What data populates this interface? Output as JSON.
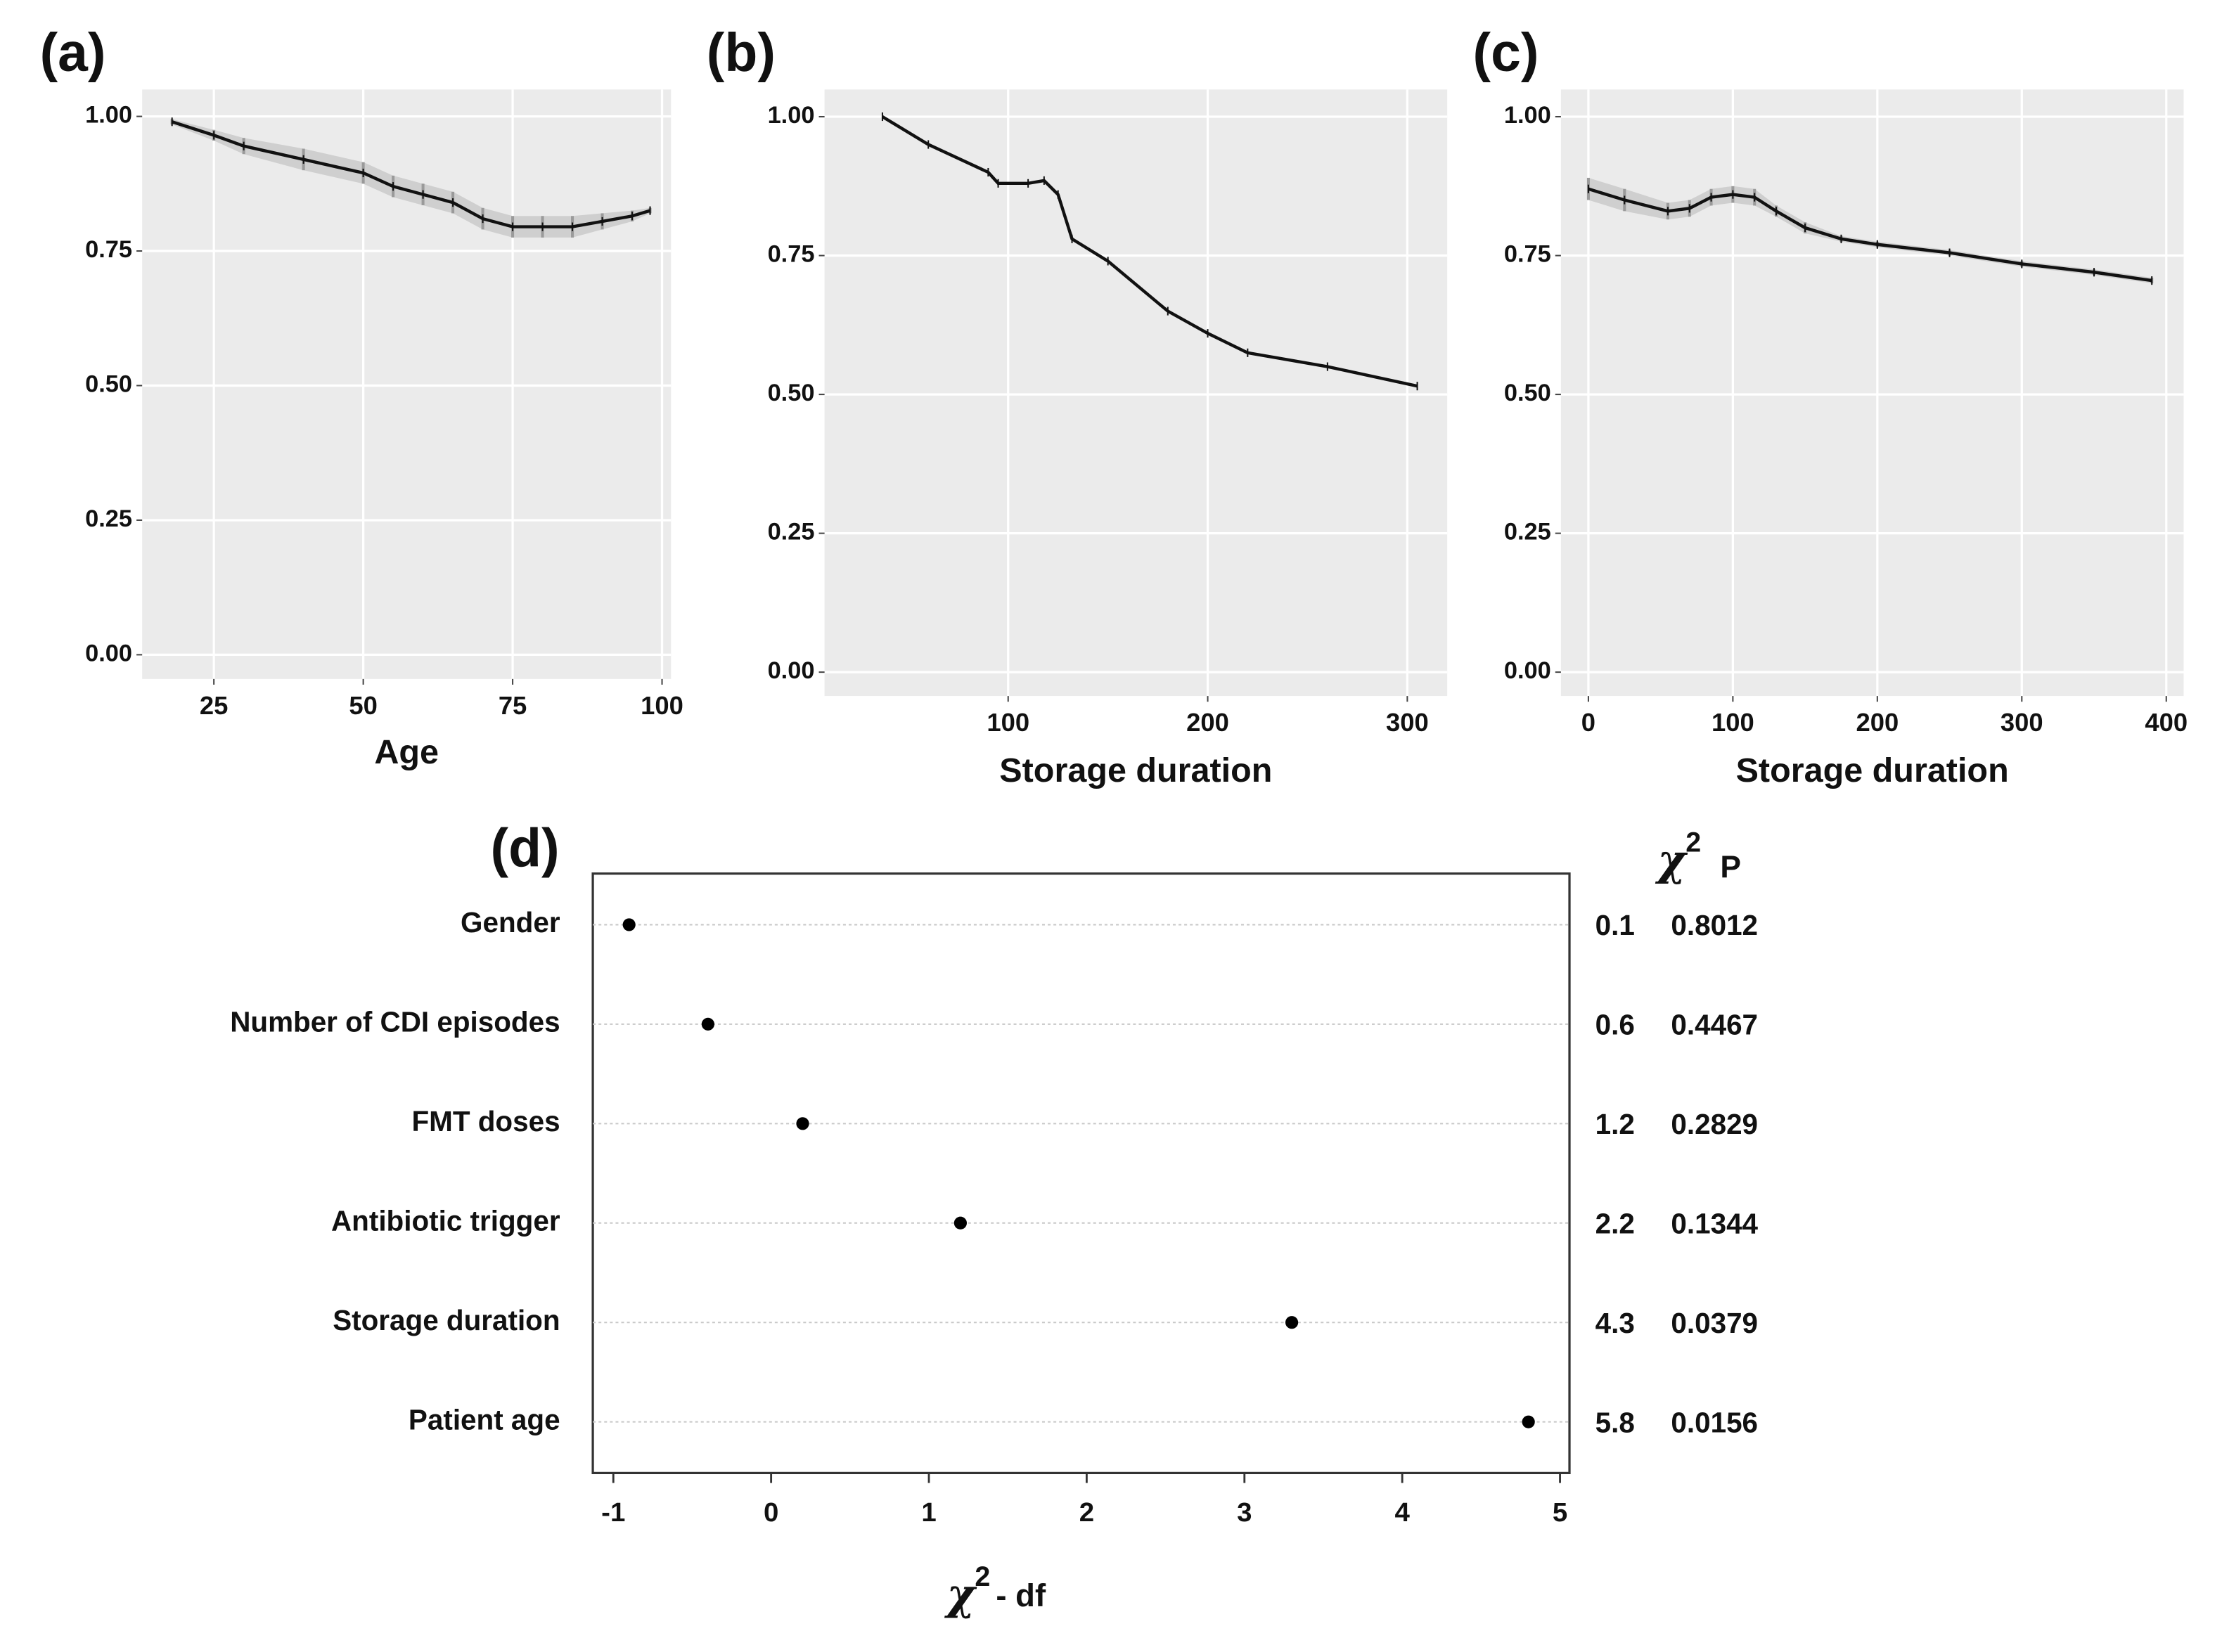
{
  "chart_data": [
    {
      "type": "line",
      "panel_label": "(a)",
      "xlabel": "Age",
      "background": "#ebebeb",
      "grid": true,
      "color": "#111111",
      "band_color": "#9a9a9a",
      "x": [
        18,
        25,
        30,
        40,
        50,
        55,
        60,
        65,
        70,
        75,
        80,
        85,
        90,
        95,
        98
      ],
      "values": [
        0.99,
        0.965,
        0.945,
        0.92,
        0.895,
        0.87,
        0.855,
        0.84,
        0.81,
        0.795,
        0.795,
        0.795,
        0.805,
        0.815,
        0.825
      ],
      "lower": [
        0.985,
        0.955,
        0.93,
        0.9,
        0.875,
        0.85,
        0.835,
        0.82,
        0.79,
        0.775,
        0.775,
        0.775,
        0.79,
        0.805,
        0.82
      ],
      "upper": [
        0.995,
        0.975,
        0.96,
        0.94,
        0.915,
        0.89,
        0.875,
        0.86,
        0.83,
        0.815,
        0.815,
        0.815,
        0.82,
        0.825,
        0.83
      ],
      "xlim": [
        13,
        101.5
      ],
      "xticks": [
        25,
        50,
        75,
        100
      ],
      "ylim": [
        -0.045,
        1.05
      ],
      "yticks": [
        {
          "value": 0,
          "label": "0.00"
        },
        {
          "value": 0.25,
          "label": "0.25"
        },
        {
          "value": 0.5,
          "label": "0.50"
        },
        {
          "value": 0.75,
          "label": "0.75"
        },
        {
          "value": 1,
          "label": "1.00"
        }
      ]
    },
    {
      "type": "line",
      "panel_label": "(b)",
      "xlabel": "Storage duration",
      "background": "#ebebeb",
      "grid": true,
      "color": "#111111",
      "x": [
        37,
        60,
        90,
        95,
        110,
        118,
        125,
        132,
        150,
        180,
        200,
        220,
        260,
        305
      ],
      "values": [
        1.0,
        0.95,
        0.9,
        0.88,
        0.88,
        0.885,
        0.86,
        0.78,
        0.74,
        0.65,
        0.61,
        0.575,
        0.55,
        0.515
      ],
      "xlim": [
        8,
        320
      ],
      "xticks": [
        100,
        200,
        300
      ],
      "ylim": [
        -0.043,
        1.049
      ],
      "yticks": [
        {
          "value": 0,
          "label": "0.00"
        },
        {
          "value": 0.25,
          "label": "0.25"
        },
        {
          "value": 0.5,
          "label": "0.50"
        },
        {
          "value": 0.75,
          "label": "0.75"
        },
        {
          "value": 1,
          "label": "1.00"
        }
      ]
    },
    {
      "type": "line",
      "panel_label": "(c)",
      "xlabel": "Storage duration",
      "background": "#ebebeb",
      "grid": true,
      "color": "#111111",
      "band_color": "#9a9a9a",
      "x": [
        0,
        25,
        55,
        70,
        85,
        100,
        115,
        130,
        150,
        175,
        200,
        250,
        300,
        350,
        390
      ],
      "values": [
        0.87,
        0.85,
        0.83,
        0.835,
        0.855,
        0.86,
        0.855,
        0.83,
        0.8,
        0.78,
        0.77,
        0.755,
        0.735,
        0.72,
        0.705
      ],
      "lower": [
        0.85,
        0.83,
        0.815,
        0.82,
        0.84,
        0.845,
        0.84,
        0.82,
        0.79,
        0.775,
        0.765,
        0.75,
        0.73,
        0.715,
        0.7
      ],
      "upper": [
        0.89,
        0.87,
        0.845,
        0.85,
        0.87,
        0.875,
        0.87,
        0.84,
        0.81,
        0.785,
        0.775,
        0.76,
        0.74,
        0.725,
        0.71
      ],
      "xlim": [
        -19,
        412
      ],
      "xticks": [
        0,
        100,
        200,
        300,
        400
      ],
      "ylim": [
        -0.043,
        1.049
      ],
      "yticks": [
        {
          "value": 0,
          "label": "0.00"
        },
        {
          "value": 0.25,
          "label": "0.25"
        },
        {
          "value": 0.5,
          "label": "0.50"
        },
        {
          "value": 0.75,
          "label": "0.75"
        },
        {
          "value": 1,
          "label": "1.00"
        }
      ]
    },
    {
      "type": "dot",
      "panel_label": "(d)",
      "color": "#000000",
      "xlabel": {
        "symbol": "χ",
        "sup": "2",
        "rest": "- df"
      },
      "categories": [
        "Gender",
        "Number of CDI episodes",
        "FMT doses",
        "Antibiotic trigger",
        "Storage duration",
        "Patient age"
      ],
      "values": [
        -0.9,
        -0.4,
        0.2,
        1.2,
        3.3,
        4.8
      ],
      "xlim": [
        -1.13,
        5.06
      ],
      "xticks": [
        -1,
        0,
        1,
        2,
        3,
        4,
        5
      ],
      "table": {
        "chi2_header": {
          "symbol": "χ",
          "sup": "2"
        },
        "p_header": "P",
        "chi2": [
          0.1,
          0.6,
          1.2,
          2.2,
          4.3,
          5.8
        ],
        "p": [
          0.8012,
          0.4467,
          0.2829,
          0.1344,
          0.0379,
          0.0156
        ]
      }
    }
  ]
}
